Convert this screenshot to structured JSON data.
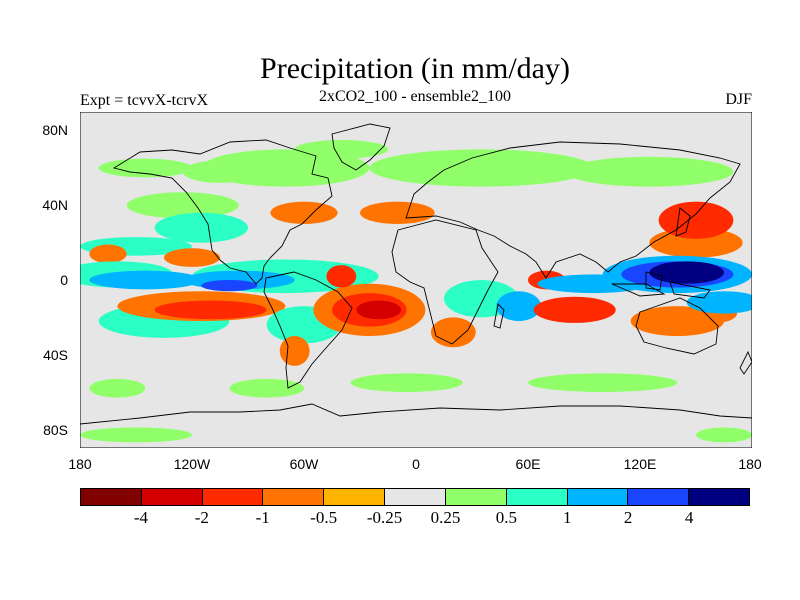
{
  "title": "Precipitation (in mm/day)",
  "left_string": "Expt = tcvvX-tcrvX",
  "center_string": "2xCO2_100 - ensemble2_100",
  "right_string": "DJF",
  "lat_labels": [
    "80N",
    "40N",
    "0",
    "40S",
    "80S"
  ],
  "lon_labels": [
    "180",
    "120W",
    "60W",
    "0",
    "60E",
    "120E",
    "180"
  ],
  "colorbar": {
    "colors": [
      "#800000",
      "#d40000",
      "#ff2a00",
      "#ff7300",
      "#ffb400",
      "#e6e6e6",
      "#90ff69",
      "#2cffc6",
      "#00b4ff",
      "#1a45ff",
      "#000080"
    ],
    "labels": [
      "-4",
      "-2",
      "-1",
      "-0.5",
      "-0.25",
      "0.25",
      "0.5",
      "1",
      "2",
      "4"
    ]
  },
  "map": {
    "projection": "cylindrical equidistant",
    "lon_range": [
      -180,
      180
    ],
    "lat_range": [
      -90,
      90
    ],
    "missing_color": "#e6e6e6",
    "anomaly_patches": [
      {
        "lon": -150,
        "lat": 18,
        "rx": 30,
        "ry": 5,
        "class": 0.5
      },
      {
        "lon": -115,
        "lat": 28,
        "rx": 25,
        "ry": 8,
        "class": 0.5
      },
      {
        "lon": -125,
        "lat": 40,
        "rx": 30,
        "ry": 7,
        "class": 0.25
      },
      {
        "lon": -145,
        "lat": 60,
        "rx": 25,
        "ry": 5,
        "class": 0.25
      },
      {
        "lon": -105,
        "lat": 58,
        "rx": 20,
        "ry": 6,
        "class": 0.25
      },
      {
        "lon": -70,
        "lat": 60,
        "rx": 45,
        "ry": 10,
        "class": 0.25
      },
      {
        "lon": -40,
        "lat": 70,
        "rx": 25,
        "ry": 5,
        "class": 0.25
      },
      {
        "lon": 35,
        "lat": 60,
        "rx": 60,
        "ry": 10,
        "class": 0.25
      },
      {
        "lon": 125,
        "lat": 58,
        "rx": 45,
        "ry": 8,
        "class": 0.25
      },
      {
        "lon": -160,
        "lat": -58,
        "rx": 15,
        "ry": 5,
        "class": 0.25
      },
      {
        "lon": -80,
        "lat": -58,
        "rx": 20,
        "ry": 5,
        "class": 0.25
      },
      {
        "lon": -5,
        "lat": -55,
        "rx": 30,
        "ry": 5,
        "class": 0.25
      },
      {
        "lon": 100,
        "lat": -55,
        "rx": 40,
        "ry": 5,
        "class": 0.25
      },
      {
        "lon": -150,
        "lat": -83,
        "rx": 30,
        "ry": 4,
        "class": 0.25
      },
      {
        "lon": 165,
        "lat": -83,
        "rx": 15,
        "ry": 4,
        "class": 0.25
      },
      {
        "lon": -60,
        "lat": 36,
        "rx": 18,
        "ry": 6,
        "class": -0.5
      },
      {
        "lon": -10,
        "lat": 36,
        "rx": 20,
        "ry": 6,
        "class": -0.5
      },
      {
        "lon": 150,
        "lat": 32,
        "rx": 20,
        "ry": 10,
        "class": -1
      },
      {
        "lon": 150,
        "lat": 20,
        "rx": 25,
        "ry": 8,
        "class": -0.5
      },
      {
        "lon": -165,
        "lat": 14,
        "rx": 10,
        "ry": 5,
        "class": -0.5
      },
      {
        "lon": -120,
        "lat": 12,
        "rx": 15,
        "ry": 5,
        "class": -0.5
      },
      {
        "lon": -160,
        "lat": 3,
        "rx": 30,
        "ry": 7,
        "class": 0.5
      },
      {
        "lon": -70,
        "lat": 2,
        "rx": 50,
        "ry": 9,
        "class": 0.5
      },
      {
        "lon": -145,
        "lat": 0,
        "rx": 30,
        "ry": 5,
        "class": 1
      },
      {
        "lon": -95,
        "lat": 0,
        "rx": 30,
        "ry": 5,
        "class": 1
      },
      {
        "lon": -100,
        "lat": -3,
        "rx": 15,
        "ry": 3,
        "class": 2
      },
      {
        "lon": -135,
        "lat": -22,
        "rx": 35,
        "ry": 9,
        "class": 0.5
      },
      {
        "lon": -115,
        "lat": -14,
        "rx": 45,
        "ry": 8,
        "class": -0.5
      },
      {
        "lon": -110,
        "lat": -16,
        "rx": 30,
        "ry": 5,
        "class": -1
      },
      {
        "lon": -60,
        "lat": -24,
        "rx": 20,
        "ry": 10,
        "class": 0.5
      },
      {
        "lon": -65,
        "lat": -38,
        "rx": 8,
        "ry": 8,
        "class": -0.5
      },
      {
        "lon": -25,
        "lat": -16,
        "rx": 30,
        "ry": 14,
        "class": -0.5
      },
      {
        "lon": -25,
        "lat": -16,
        "rx": 20,
        "ry": 9,
        "class": -1
      },
      {
        "lon": -20,
        "lat": -16,
        "rx": 12,
        "ry": 5,
        "class": -2
      },
      {
        "lon": -40,
        "lat": 2,
        "rx": 8,
        "ry": 6,
        "class": -1
      },
      {
        "lon": 20,
        "lat": -28,
        "rx": 12,
        "ry": 8,
        "class": -0.5
      },
      {
        "lon": 35,
        "lat": -10,
        "rx": 20,
        "ry": 10,
        "class": 0.5
      },
      {
        "lon": 55,
        "lat": -14,
        "rx": 12,
        "ry": 8,
        "class": 1
      },
      {
        "lon": 70,
        "lat": 0,
        "rx": 10,
        "ry": 5,
        "class": -1
      },
      {
        "lon": 85,
        "lat": -16,
        "rx": 22,
        "ry": 7,
        "class": -1
      },
      {
        "lon": 95,
        "lat": -2,
        "rx": 30,
        "ry": 5,
        "class": 1
      },
      {
        "lon": 140,
        "lat": 3,
        "rx": 40,
        "ry": 10,
        "class": 1
      },
      {
        "lon": 140,
        "lat": 3,
        "rx": 30,
        "ry": 7,
        "class": 2
      },
      {
        "lon": 145,
        "lat": 4,
        "rx": 20,
        "ry": 6,
        "class": 4
      },
      {
        "lon": 165,
        "lat": -12,
        "rx": 20,
        "ry": 6,
        "class": 1
      },
      {
        "lon": 140,
        "lat": -22,
        "rx": 25,
        "ry": 8,
        "class": -0.5
      },
      {
        "lon": 160,
        "lat": -18,
        "rx": 12,
        "ry": 5,
        "class": -0.5
      }
    ]
  }
}
